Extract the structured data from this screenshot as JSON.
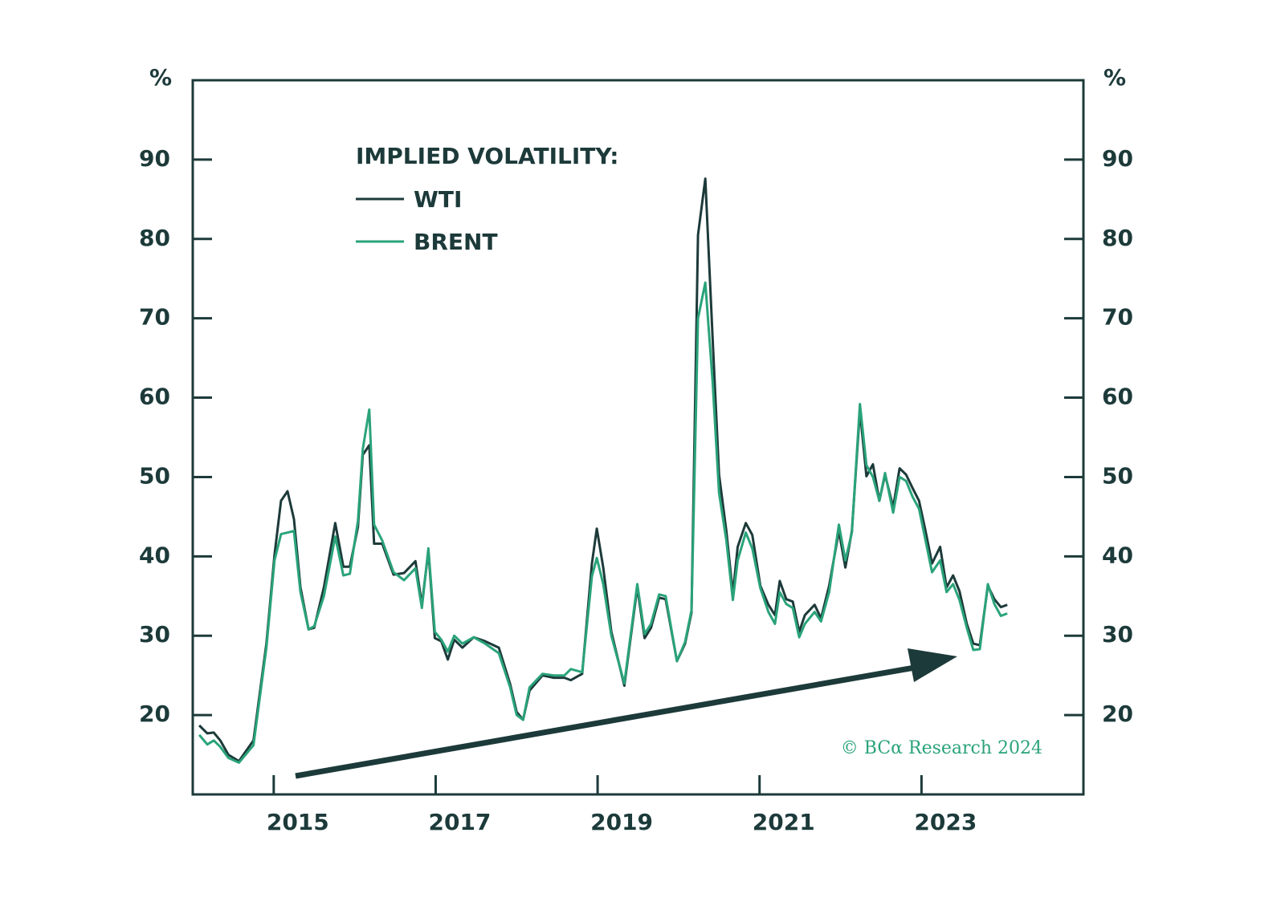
{
  "chart_data": {
    "type": "line",
    "legend_title": "IMPLIED VOLATILITY:",
    "y_unit": "%",
    "y2_unit": "%",
    "source": "© BCα Research 2024",
    "xlim": [
      2014,
      2025
    ],
    "xticks": [
      2015,
      2017,
      2019,
      2021,
      2023
    ],
    "ylim": [
      10,
      100
    ],
    "yticks": [
      20,
      30,
      40,
      50,
      60,
      70,
      80,
      90
    ],
    "y2lim": [
      10,
      100
    ],
    "y2ticks": [
      20,
      30,
      40,
      50,
      60,
      70,
      80,
      90
    ],
    "x": [
      2014.08,
      2014.18,
      2014.26,
      2014.34,
      2014.44,
      2014.57,
      2014.75,
      2014.91,
      2015.01,
      2015.09,
      2015.17,
      2015.25,
      2015.33,
      2015.43,
      2015.5,
      2015.62,
      2015.76,
      2015.86,
      2015.94,
      2016.04,
      2016.1,
      2016.18,
      2016.24,
      2016.34,
      2016.48,
      2016.61,
      2016.75,
      2016.83,
      2016.91,
      2016.99,
      2017.07,
      2017.15,
      2017.23,
      2017.33,
      2017.47,
      2017.61,
      2017.78,
      2017.92,
      2018.0,
      2018.08,
      2018.16,
      2018.32,
      2018.46,
      2018.59,
      2018.67,
      2018.81,
      2018.93,
      2018.99,
      2019.07,
      2019.17,
      2019.33,
      2019.49,
      2019.58,
      2019.66,
      2019.76,
      2019.84,
      2019.98,
      2020.08,
      2020.16,
      2020.24,
      2020.33,
      2020.42,
      2020.5,
      2020.59,
      2020.67,
      2020.73,
      2020.83,
      2020.91,
      2021.01,
      2021.11,
      2021.19,
      2021.25,
      2021.33,
      2021.41,
      2021.49,
      2021.56,
      2021.68,
      2021.76,
      2021.86,
      2021.98,
      2022.06,
      2022.14,
      2022.24,
      2022.32,
      2022.4,
      2022.48,
      2022.55,
      2022.65,
      2022.73,
      2022.81,
      2022.89,
      2022.97,
      2023.05,
      2023.13,
      2023.23,
      2023.31,
      2023.39,
      2023.47,
      2023.56,
      2023.64,
      2023.72,
      2023.82,
      2023.9,
      2023.98,
      2024.06
    ],
    "series": [
      {
        "name": "WTI",
        "color": "#1d3a3a",
        "values": [
          18.7,
          17.7,
          17.8,
          16.8,
          15.0,
          14.2,
          16.8,
          29.0,
          40.2,
          47.0,
          48.2,
          44.7,
          36.1,
          30.8,
          31.0,
          36.1,
          44.2,
          38.7,
          38.7,
          43.7,
          52.8,
          54.0,
          41.6,
          41.6,
          37.7,
          37.9,
          39.4,
          33.9,
          40.7,
          29.7,
          29.3,
          27.0,
          29.5,
          28.5,
          29.8,
          29.3,
          28.5,
          23.9,
          20.4,
          19.4,
          23.1,
          25.0,
          24.7,
          24.7,
          24.4,
          25.2,
          39.1,
          43.5,
          38.6,
          30.5,
          23.7,
          36.1,
          29.7,
          31.0,
          34.8,
          34.6,
          26.8,
          29.0,
          32.9,
          80.5,
          87.6,
          67.5,
          50.3,
          43.2,
          35.3,
          41.2,
          44.2,
          42.7,
          36.3,
          33.9,
          32.6,
          36.9,
          34.6,
          34.3,
          30.5,
          32.6,
          33.9,
          32.2,
          36.3,
          43.2,
          38.6,
          43.2,
          58.4,
          50.1,
          51.6,
          47.0,
          50.3,
          46.2,
          51.1,
          50.3,
          48.6,
          47.0,
          43.2,
          39.1,
          41.2,
          36.1,
          37.6,
          35.6,
          31.5,
          29.0,
          28.8,
          36.3,
          34.6,
          33.6,
          33.9
        ]
      },
      {
        "name": "BRENT",
        "color": "#2aa37a",
        "values": [
          17.5,
          16.3,
          16.8,
          16.0,
          14.6,
          14.0,
          16.2,
          28.5,
          39.5,
          42.8,
          43.0,
          43.2,
          35.5,
          30.8,
          31.2,
          35.0,
          42.5,
          37.6,
          37.8,
          44.5,
          53.5,
          58.5,
          44.0,
          42.0,
          38.0,
          37.0,
          38.5,
          33.5,
          41.0,
          30.5,
          29.5,
          28.0,
          30.0,
          29.0,
          29.8,
          29.0,
          27.8,
          23.5,
          20.0,
          19.4,
          23.5,
          25.2,
          25.0,
          25.0,
          25.8,
          25.4,
          37.5,
          39.8,
          36.5,
          30.0,
          24.0,
          36.5,
          30.2,
          31.5,
          35.2,
          35.0,
          26.8,
          29.2,
          33.2,
          70.0,
          74.5,
          62.0,
          48.0,
          42.0,
          34.5,
          39.5,
          43.0,
          41.0,
          36.0,
          33.0,
          31.5,
          35.5,
          34.0,
          33.5,
          29.8,
          31.5,
          33.0,
          31.8,
          35.5,
          44.0,
          39.5,
          43.0,
          59.2,
          51.5,
          50.0,
          47.0,
          50.5,
          45.5,
          50.0,
          49.5,
          47.5,
          46.0,
          42.0,
          38.0,
          39.5,
          35.5,
          36.5,
          34.5,
          31.0,
          28.2,
          28.3,
          36.5,
          34.0,
          32.5,
          32.8
        ]
      }
    ]
  }
}
